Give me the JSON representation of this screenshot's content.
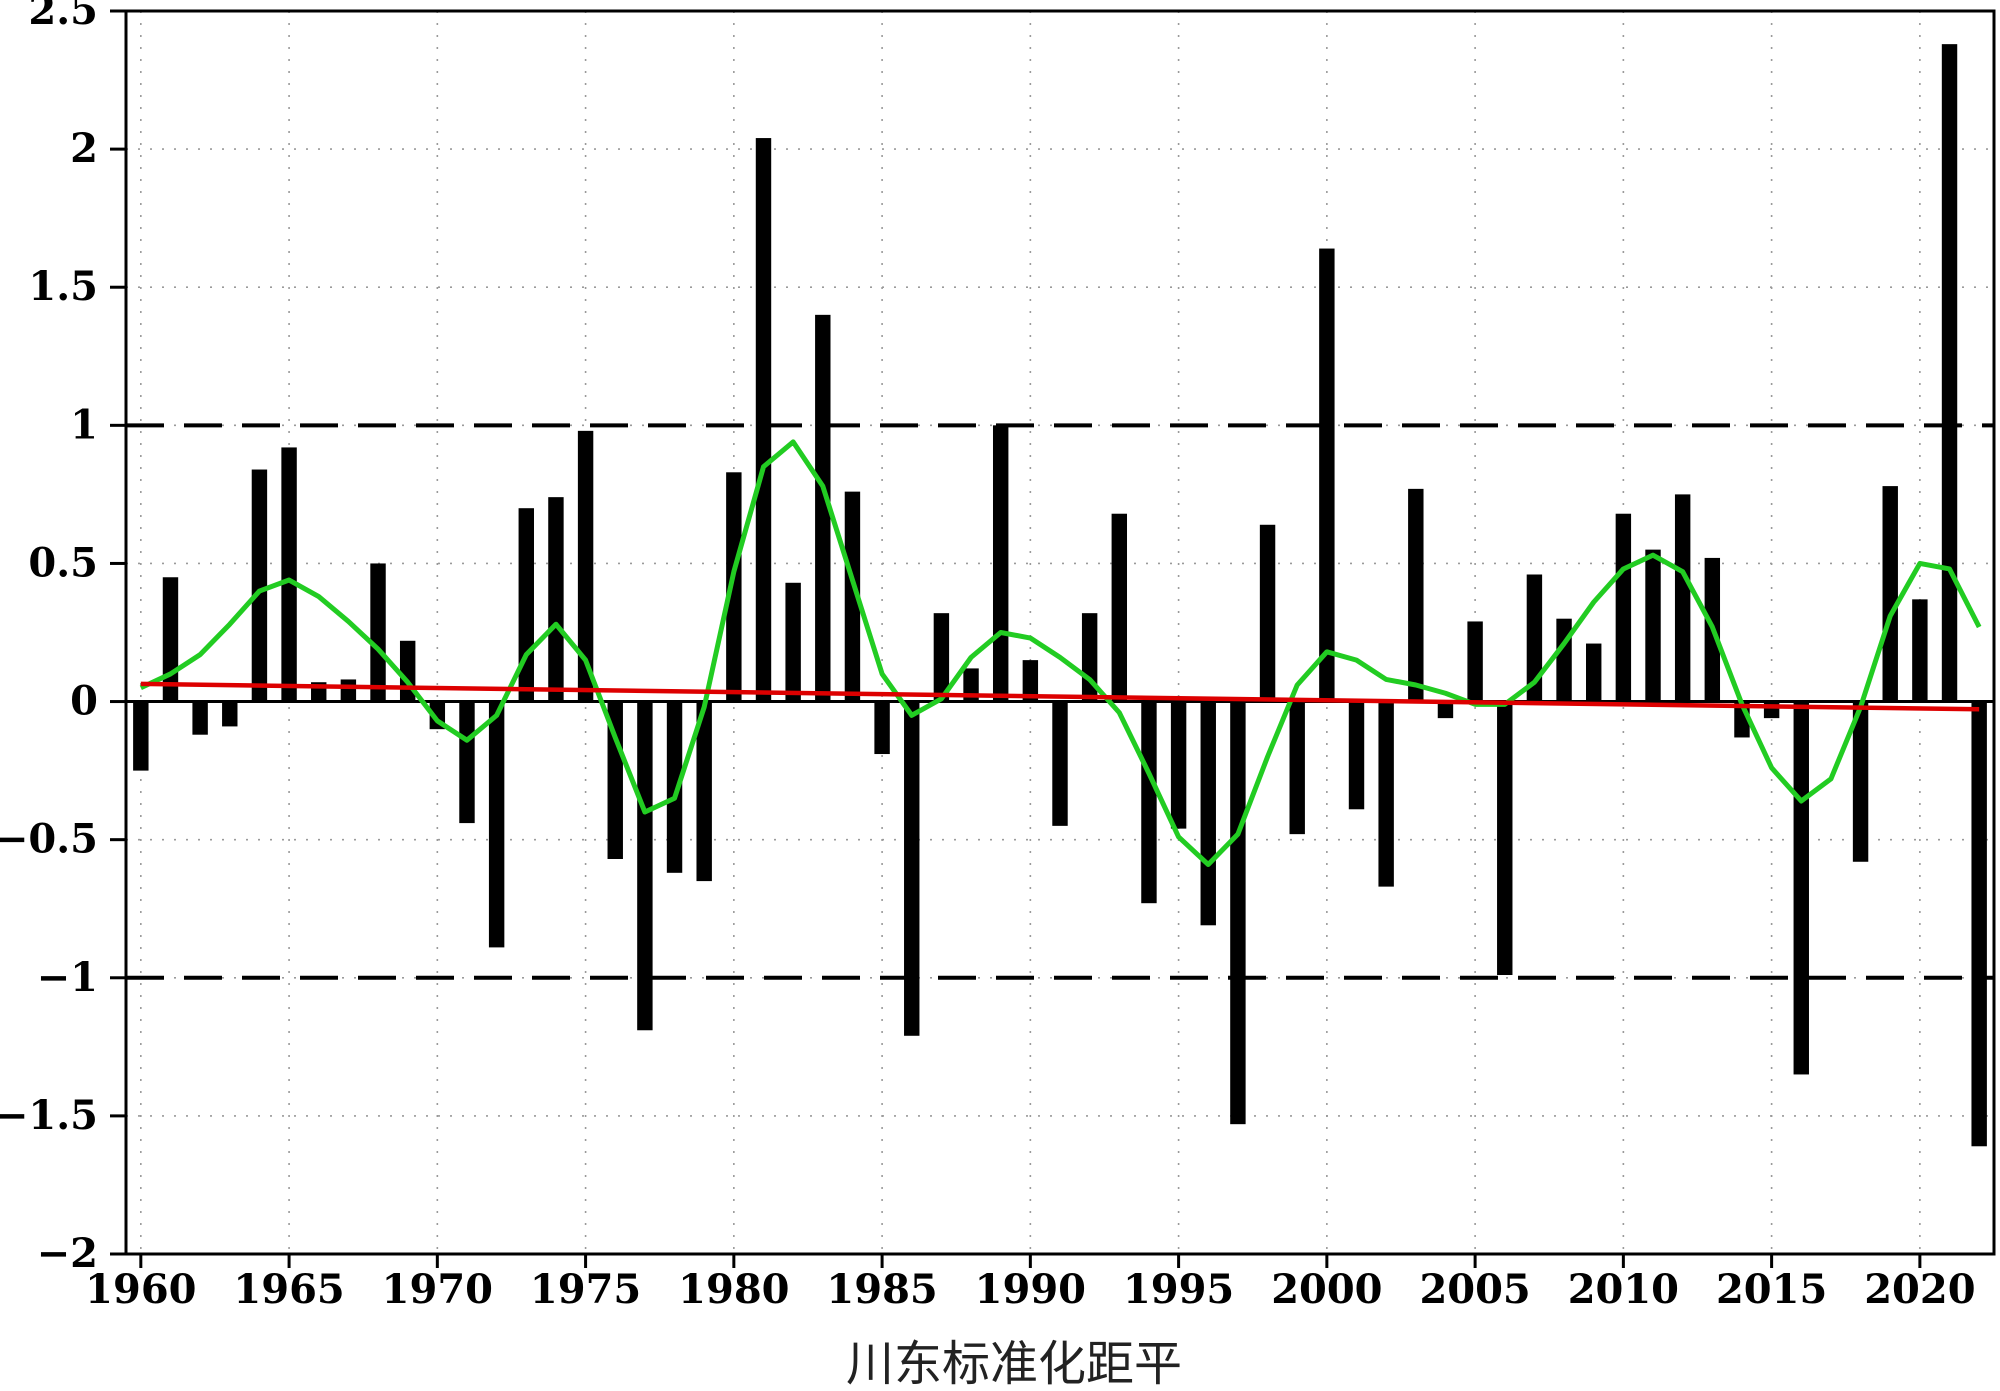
{
  "chart_data": {
    "type": "bar",
    "title": "",
    "xlabel": "川东标准化距平",
    "ylabel": "",
    "xlim": [
      1959.5,
      2022.5
    ],
    "ylim": [
      -2,
      2.5
    ],
    "x_ticks": [
      1960,
      1965,
      1970,
      1975,
      1980,
      1985,
      1990,
      1995,
      2000,
      2005,
      2010,
      2015,
      2020
    ],
    "x_tick_labels": [
      "1960",
      "1965",
      "1970",
      "1975",
      "1980",
      "1985",
      "1990",
      "1995",
      "2000",
      "2005",
      "2010",
      "2015",
      "2020"
    ],
    "y_ticks": [
      -2,
      -1.5,
      -1,
      -0.5,
      0,
      0.5,
      1,
      1.5,
      2,
      2.5
    ],
    "y_tick_labels": [
      "−2",
      "−1.5",
      "−1",
      "−0.5",
      "0",
      "0.5",
      "1",
      "1.5",
      "2",
      "2.5"
    ],
    "grid": true,
    "reference_lines": [
      1,
      -1
    ],
    "colors": {
      "bars": "#000000",
      "smooth": "#22cc22",
      "trend": "#dd0000",
      "reference": "#000000"
    },
    "series": [
      {
        "type": "bar",
        "x": [
          1960,
          1961,
          1962,
          1963,
          1964,
          1965,
          1966,
          1967,
          1968,
          1969,
          1970,
          1971,
          1972,
          1973,
          1974,
          1975,
          1976,
          1977,
          1978,
          1979,
          1980,
          1981,
          1982,
          1983,
          1984,
          1985,
          1986,
          1987,
          1988,
          1989,
          1990,
          1991,
          1992,
          1993,
          1994,
          1995,
          1996,
          1997,
          1998,
          1999,
          2000,
          2001,
          2002,
          2003,
          2004,
          2005,
          2006,
          2007,
          2008,
          2009,
          2010,
          2011,
          2012,
          2013,
          2014,
          2015,
          2016,
          2017,
          2018,
          2019,
          2020,
          2021,
          2022
        ],
        "values": [
          -0.25,
          0.45,
          -0.12,
          -0.09,
          0.84,
          0.92,
          0.07,
          0.08,
          0.5,
          0.22,
          -0.1,
          -0.44,
          -0.89,
          0.7,
          0.74,
          0.98,
          -0.57,
          -1.19,
          -0.62,
          -0.65,
          0.83,
          2.04,
          0.43,
          1.4,
          0.76,
          -0.19,
          -1.21,
          0.32,
          0.12,
          1.0,
          0.15,
          -0.45,
          0.32,
          0.68,
          -0.73,
          -0.46,
          -0.81,
          -1.53,
          0.64,
          -0.48,
          1.64,
          -0.39,
          -0.67,
          0.77,
          -0.06,
          0.29,
          -0.99,
          0.46,
          0.3,
          0.21,
          0.68,
          0.55,
          0.75,
          0.52,
          -0.13,
          -0.06,
          -1.35,
          0.0,
          -0.58,
          0.78,
          0.37,
          2.38,
          -1.61
        ]
      },
      {
        "type": "line",
        "x": [
          1960,
          1961,
          1962,
          1963,
          1964,
          1965,
          1966,
          1967,
          1968,
          1969,
          1970,
          1971,
          1972,
          1973,
          1974,
          1975,
          1976,
          1977,
          1978,
          1979,
          1980,
          1981,
          1982,
          1983,
          1984,
          1985,
          1986,
          1987,
          1988,
          1989,
          1990,
          1991,
          1992,
          1993,
          1994,
          1995,
          1996,
          1997,
          1998,
          1999,
          2000,
          2001,
          2002,
          2003,
          2004,
          2005,
          2006,
          2007,
          2008,
          2009,
          2010,
          2011,
          2012,
          2013,
          2014,
          2015,
          2016,
          2017,
          2018,
          2019,
          2020,
          2021,
          2022
        ],
        "values": [
          0.05,
          0.1,
          0.17,
          0.28,
          0.4,
          0.44,
          0.38,
          0.29,
          0.19,
          0.07,
          -0.07,
          -0.14,
          -0.05,
          0.17,
          0.28,
          0.15,
          -0.13,
          -0.4,
          -0.35,
          -0.02,
          0.47,
          0.85,
          0.94,
          0.78,
          0.44,
          0.1,
          -0.05,
          0.01,
          0.16,
          0.25,
          0.23,
          0.16,
          0.08,
          -0.04,
          -0.26,
          -0.49,
          -0.59,
          -0.48,
          -0.2,
          0.06,
          0.18,
          0.15,
          0.08,
          0.06,
          0.03,
          -0.01,
          -0.01,
          0.07,
          0.21,
          0.36,
          0.48,
          0.53,
          0.47,
          0.27,
          -0.01,
          -0.24,
          -0.36,
          -0.28,
          -0.02,
          0.31,
          0.5,
          0.48,
          0.27
        ]
      },
      {
        "type": "line",
        "x": [
          1960,
          2022
        ],
        "values": [
          0.064,
          -0.028
        ]
      }
    ]
  }
}
